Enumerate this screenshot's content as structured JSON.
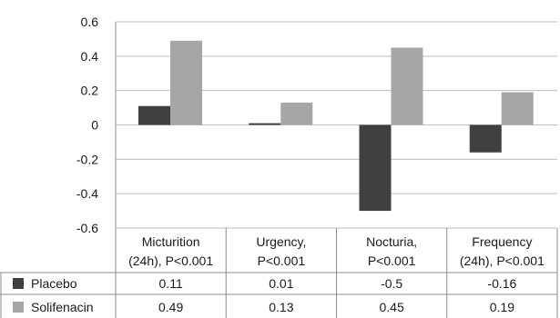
{
  "chart_data": {
    "type": "bar",
    "categories": [
      [
        "Micturition",
        "(24h), P<0.001"
      ],
      [
        "Urgency,",
        "P<0.001"
      ],
      [
        "Nocturia,",
        "P<0.001"
      ],
      [
        "Frequency",
        "(24h), P<0.001"
      ]
    ],
    "series": [
      {
        "name": "Placebo",
        "values": [
          0.11,
          0.01,
          -0.5,
          -0.16
        ],
        "labels": [
          "0.11",
          "0.01",
          "-0.5",
          "-0.16"
        ],
        "color": "#404040"
      },
      {
        "name": "Solifenacin",
        "values": [
          0.49,
          0.13,
          0.45,
          0.19
        ],
        "labels": [
          "0.49",
          "0.13",
          "0.45",
          "0.19"
        ],
        "color": "#a6a6a6"
      }
    ],
    "ylim": [
      -0.6,
      0.6
    ],
    "yticks": [
      "0.6",
      "0.4",
      "0.2",
      "0",
      "-0.2",
      "-0.4",
      "-0.6"
    ],
    "ytick_values": [
      0.6,
      0.4,
      0.2,
      0,
      -0.2,
      -0.4,
      -0.6
    ],
    "grid": true,
    "legend": "data-table"
  }
}
